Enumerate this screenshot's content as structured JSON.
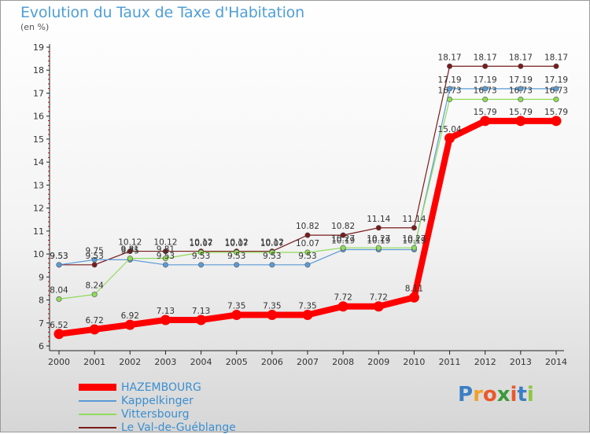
{
  "header": {
    "title": "Evolution du Taux de Taxe d'Habitation",
    "subtitle": "(en %)"
  },
  "logo": {
    "letters": [
      "P",
      "r",
      "o",
      "x",
      "i",
      "t",
      "i"
    ],
    "colors": [
      "#3a7fc4",
      "#f0a02a",
      "#e9582b",
      "#3a9a3a",
      "#e9582b",
      "#3a7fc4",
      "#8cc63f"
    ]
  },
  "chart_data": {
    "type": "line",
    "x": [
      "2000",
      "2001",
      "2002",
      "2003",
      "2004",
      "2005",
      "2006",
      "2007",
      "2008",
      "2009",
      "2010",
      "2011",
      "2012",
      "2013",
      "2014"
    ],
    "ylim": [
      6,
      19
    ],
    "yticks": [
      "6",
      "7",
      "8",
      "9",
      "10",
      "11",
      "12",
      "13",
      "14",
      "15",
      "16",
      "17",
      "18",
      "19"
    ],
    "grid": false,
    "legend_position": "bottom-left",
    "series": [
      {
        "name": "HAZEMBOURG",
        "color": "#ff0000",
        "values": [
          6.52,
          6.72,
          6.92,
          7.13,
          7.13,
          7.35,
          7.35,
          7.35,
          7.72,
          7.72,
          8.11,
          15.04,
          15.79,
          15.79,
          15.79
        ],
        "labels": [
          "6.52",
          "6.72",
          "6.92",
          "7.13",
          "7.13",
          "7.35",
          "7.35",
          "7.35",
          "7.72",
          "7.72",
          "8.11",
          "15.04",
          "15.79",
          "15.79",
          "15.79"
        ]
      },
      {
        "name": "Kappelkinger",
        "color": "#5b9bd5",
        "values": [
          9.53,
          9.75,
          9.75,
          9.53,
          9.53,
          9.53,
          9.53,
          9.53,
          10.19,
          10.19,
          10.19,
          17.19,
          17.19,
          17.19,
          17.19
        ],
        "labels": [
          "9.53",
          "9.75",
          "9.75",
          "9.53",
          "9.53",
          "9.53",
          "9.53",
          "9.53",
          "10.19",
          "10.19",
          "10.19",
          "17.19",
          "17.19",
          "17.19",
          "17.19"
        ]
      },
      {
        "name": "Vittersbourg",
        "color": "#8fdb5a",
        "values": [
          8.04,
          8.24,
          9.81,
          9.81,
          10.07,
          10.07,
          10.07,
          10.07,
          10.27,
          10.27,
          10.27,
          16.73,
          16.73,
          16.73,
          16.73
        ],
        "labels": [
          "8.04",
          "8.24",
          "9.81",
          "9.81",
          "10.07",
          "10.07",
          "10.07",
          "10.07",
          "10.27",
          "10.27",
          "10.27",
          "16.73",
          "16.73",
          "16.73",
          "16.73"
        ]
      },
      {
        "name": "Le Val-de-Guéblange",
        "color": "#7a1b1b",
        "values": [
          9.53,
          9.53,
          10.12,
          10.12,
          10.12,
          10.12,
          10.12,
          10.82,
          10.82,
          11.14,
          11.14,
          18.17,
          18.17,
          18.17,
          18.17
        ],
        "labels": [
          "9.53",
          "9.53",
          "10.12",
          "10.12",
          "10.12",
          "10.12",
          "10.12",
          "10.82",
          "10.82",
          "11.14",
          "11.14",
          "18.17",
          "18.17",
          "18.17",
          "18.17"
        ]
      }
    ]
  }
}
